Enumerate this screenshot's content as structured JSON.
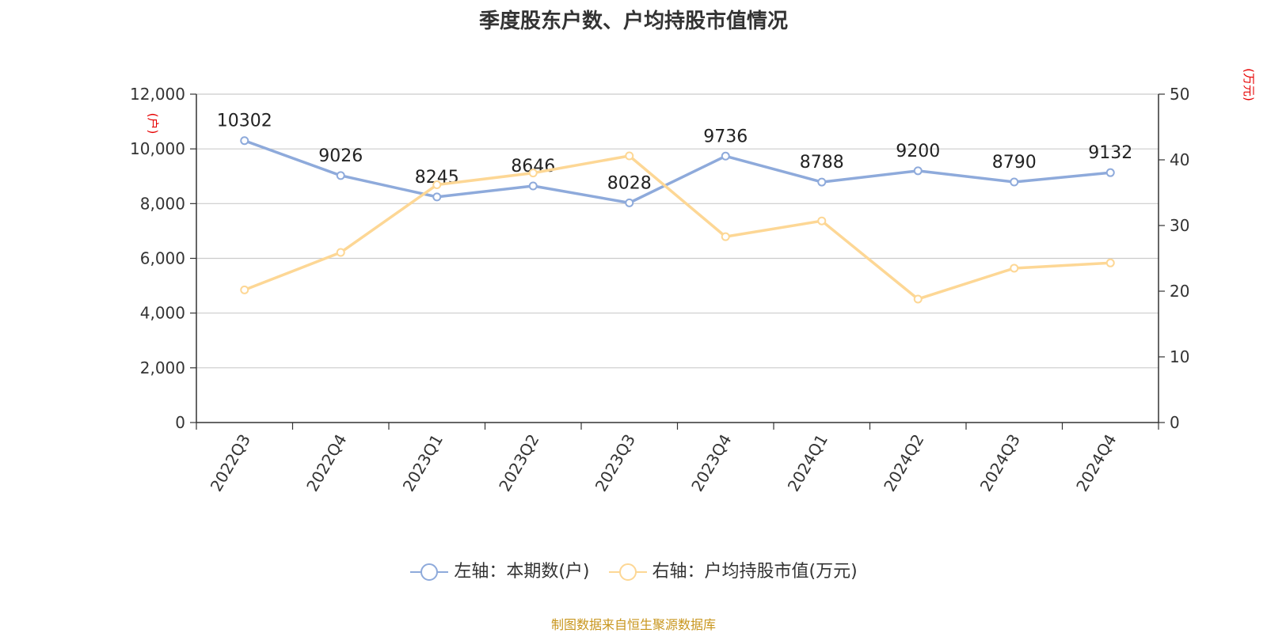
{
  "chart_data": {
    "type": "line",
    "title": "季度股东户数、户均持股市值情况",
    "categories": [
      "2022Q3",
      "2022Q4",
      "2023Q1",
      "2023Q2",
      "2023Q3",
      "2023Q4",
      "2024Q1",
      "2024Q2",
      "2024Q3",
      "2024Q4"
    ],
    "series": [
      {
        "name": "左轴：本期数(户)",
        "axis": "left",
        "color": "#8eaadb",
        "values": [
          10302,
          9026,
          8245,
          8646,
          8028,
          9736,
          8788,
          9200,
          8790,
          9132
        ],
        "data_labels": [
          "10302",
          "9026",
          "8245",
          "8646",
          "8028",
          "9736",
          "8788",
          "9200",
          "8790",
          "9132"
        ]
      },
      {
        "name": "右轴：户均持股市值(万元)",
        "axis": "right",
        "color": "#fdd795",
        "values": [
          20.2,
          25.9,
          36.2,
          38.0,
          40.6,
          28.3,
          30.7,
          18.8,
          23.5,
          24.3
        ]
      }
    ],
    "left_axis": {
      "unit": "(户)",
      "ylim": [
        0,
        12000
      ],
      "ticks": [
        0,
        2000,
        4000,
        6000,
        8000,
        10000,
        12000
      ],
      "tick_labels": [
        "0",
        "2,000",
        "4,000",
        "6,000",
        "8,000",
        "10,000",
        "12,000"
      ]
    },
    "right_axis": {
      "unit": "(万元)",
      "ylim": [
        0,
        50
      ],
      "ticks": [
        0,
        10,
        20,
        30,
        40,
        50
      ],
      "tick_labels": [
        "0",
        "10",
        "20",
        "30",
        "40",
        "50"
      ]
    },
    "grid": true,
    "legend": "bottom-center"
  },
  "source": "制图数据来自恒生聚源数据库"
}
